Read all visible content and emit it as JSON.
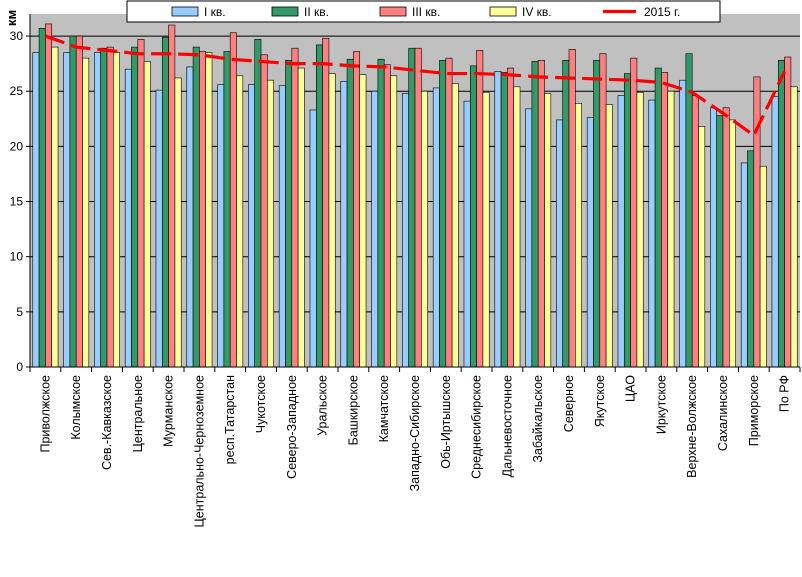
{
  "chart_data": {
    "type": "bar",
    "ylabel": "км",
    "ylim": [
      0,
      32
    ],
    "yticks": [
      0,
      5,
      10,
      15,
      20,
      25,
      30
    ],
    "grid": true,
    "legend_position": "top",
    "categories": [
      "Приволжское",
      "Колымское",
      "Сев.-Кавказское",
      "Центральное",
      "Мурманское",
      "Центрально-Черноземное",
      "респ.Татарстан",
      "Чукотское",
      "Северо-Западное",
      "Уральское",
      "Башкирское",
      "Камчатское",
      "Западно-Сибирское",
      "Обь-Иртышское",
      "Среднесибирское",
      "Дальневосточное",
      "Забайкальское",
      "Северное",
      "Якутское",
      "ЦАО",
      "Иркутское",
      "Верхне-Волжское",
      "Сахалинское",
      "Приморское",
      "По РФ"
    ],
    "series": [
      {
        "name": "I кв.",
        "color": "#99ccff",
        "values": [
          28.5,
          28.5,
          28.5,
          27.0,
          25.1,
          27.2,
          25.6,
          25.6,
          25.5,
          23.3,
          25.9,
          25.0,
          24.8,
          25.3,
          24.1,
          26.8,
          23.4,
          22.4,
          22.6,
          24.6,
          24.2,
          26.0,
          23.5,
          18.5,
          24.5
        ]
      },
      {
        "name": "II кв.",
        "color": "#339966",
        "values": [
          30.7,
          30.0,
          28.9,
          29.0,
          29.9,
          29.0,
          28.6,
          29.7,
          27.8,
          29.2,
          27.9,
          27.9,
          28.9,
          27.8,
          27.3,
          26.7,
          27.7,
          27.8,
          27.8,
          26.6,
          27.1,
          28.4,
          22.8,
          19.6,
          27.8
        ]
      },
      {
        "name": "III кв.",
        "color": "#ff8080",
        "values": [
          31.1,
          30.0,
          29.0,
          29.7,
          31.0,
          28.6,
          30.3,
          28.3,
          28.9,
          29.8,
          28.6,
          27.4,
          28.9,
          28.0,
          28.7,
          27.1,
          27.8,
          28.8,
          28.4,
          28.0,
          26.7,
          24.6,
          23.5,
          26.3,
          28.1
        ]
      },
      {
        "name": "IV кв.",
        "color": "#ffff99",
        "values": [
          29.0,
          28.0,
          28.5,
          27.7,
          26.2,
          28.5,
          26.4,
          26.0,
          27.1,
          26.6,
          26.5,
          26.4,
          25.0,
          25.7,
          24.9,
          25.4,
          24.8,
          23.9,
          23.8,
          24.9,
          25.0,
          21.8,
          22.4,
          18.2,
          25.4
        ]
      }
    ],
    "line": {
      "name": "2015 г.",
      "color": "#ff0000",
      "values": [
        30.0,
        29.0,
        28.7,
        28.4,
        28.4,
        28.3,
        27.9,
        27.7,
        27.5,
        27.5,
        27.3,
        27.2,
        26.9,
        26.6,
        26.6,
        26.5,
        26.3,
        26.2,
        26.1,
        26.0,
        25.8,
        24.9,
        23.0,
        21.0,
        26.8
      ]
    }
  }
}
